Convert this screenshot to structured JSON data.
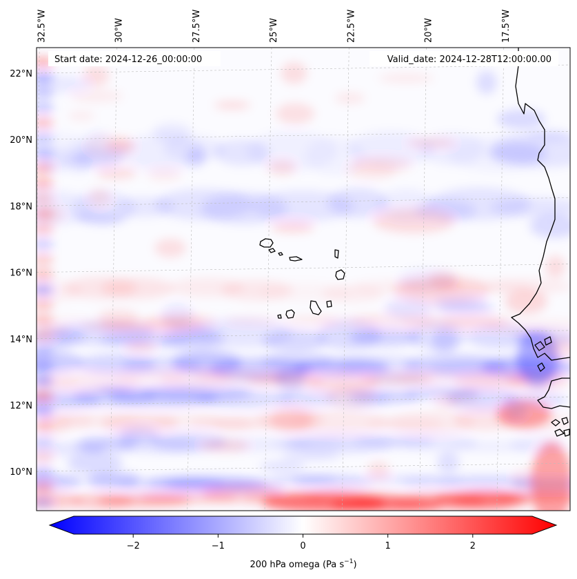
{
  "map": {
    "start_date_label": "Start date: 2024-12-26_00:00:00",
    "valid_date_label": "Valid_date: 2024-12-28T12:00:00.00",
    "longitude_labels": [
      {
        "text": "32.5°W",
        "lon": -32.5
      },
      {
        "text": "30°W",
        "lon": -30.0
      },
      {
        "text": "27.5°W",
        "lon": -27.5
      },
      {
        "text": "25°W",
        "lon": -25.0
      },
      {
        "text": "22.5°W",
        "lon": -22.5
      },
      {
        "text": "20°W",
        "lon": -20.0
      },
      {
        "text": "17.5°W",
        "lon": -17.5
      }
    ],
    "latitude_labels": [
      {
        "text": "22°N",
        "lat": 22
      },
      {
        "text": "20°N",
        "lat": 20
      },
      {
        "text": "18°N",
        "lat": 18
      },
      {
        "text": "16°N",
        "lat": 16
      },
      {
        "text": "14°N",
        "lat": 14
      },
      {
        "text": "12°N",
        "lat": 12
      },
      {
        "text": "10°N",
        "lat": 10
      }
    ],
    "field_colors": {
      "negative": "#0000ff",
      "neutral": "#ffffff",
      "positive": "#ff0000"
    },
    "colorbar": {
      "min": -2.7,
      "max": 2.7,
      "ticks": [
        {
          "value": -2,
          "text": "−2"
        },
        {
          "value": -1,
          "text": "−1"
        },
        {
          "value": 0,
          "text": "0"
        },
        {
          "value": 1,
          "text": "1"
        },
        {
          "value": 2,
          "text": "2"
        }
      ],
      "label_main": "200 hPa omega (Pa s",
      "label_exp": "−1",
      "label_end": ")"
    }
  }
}
